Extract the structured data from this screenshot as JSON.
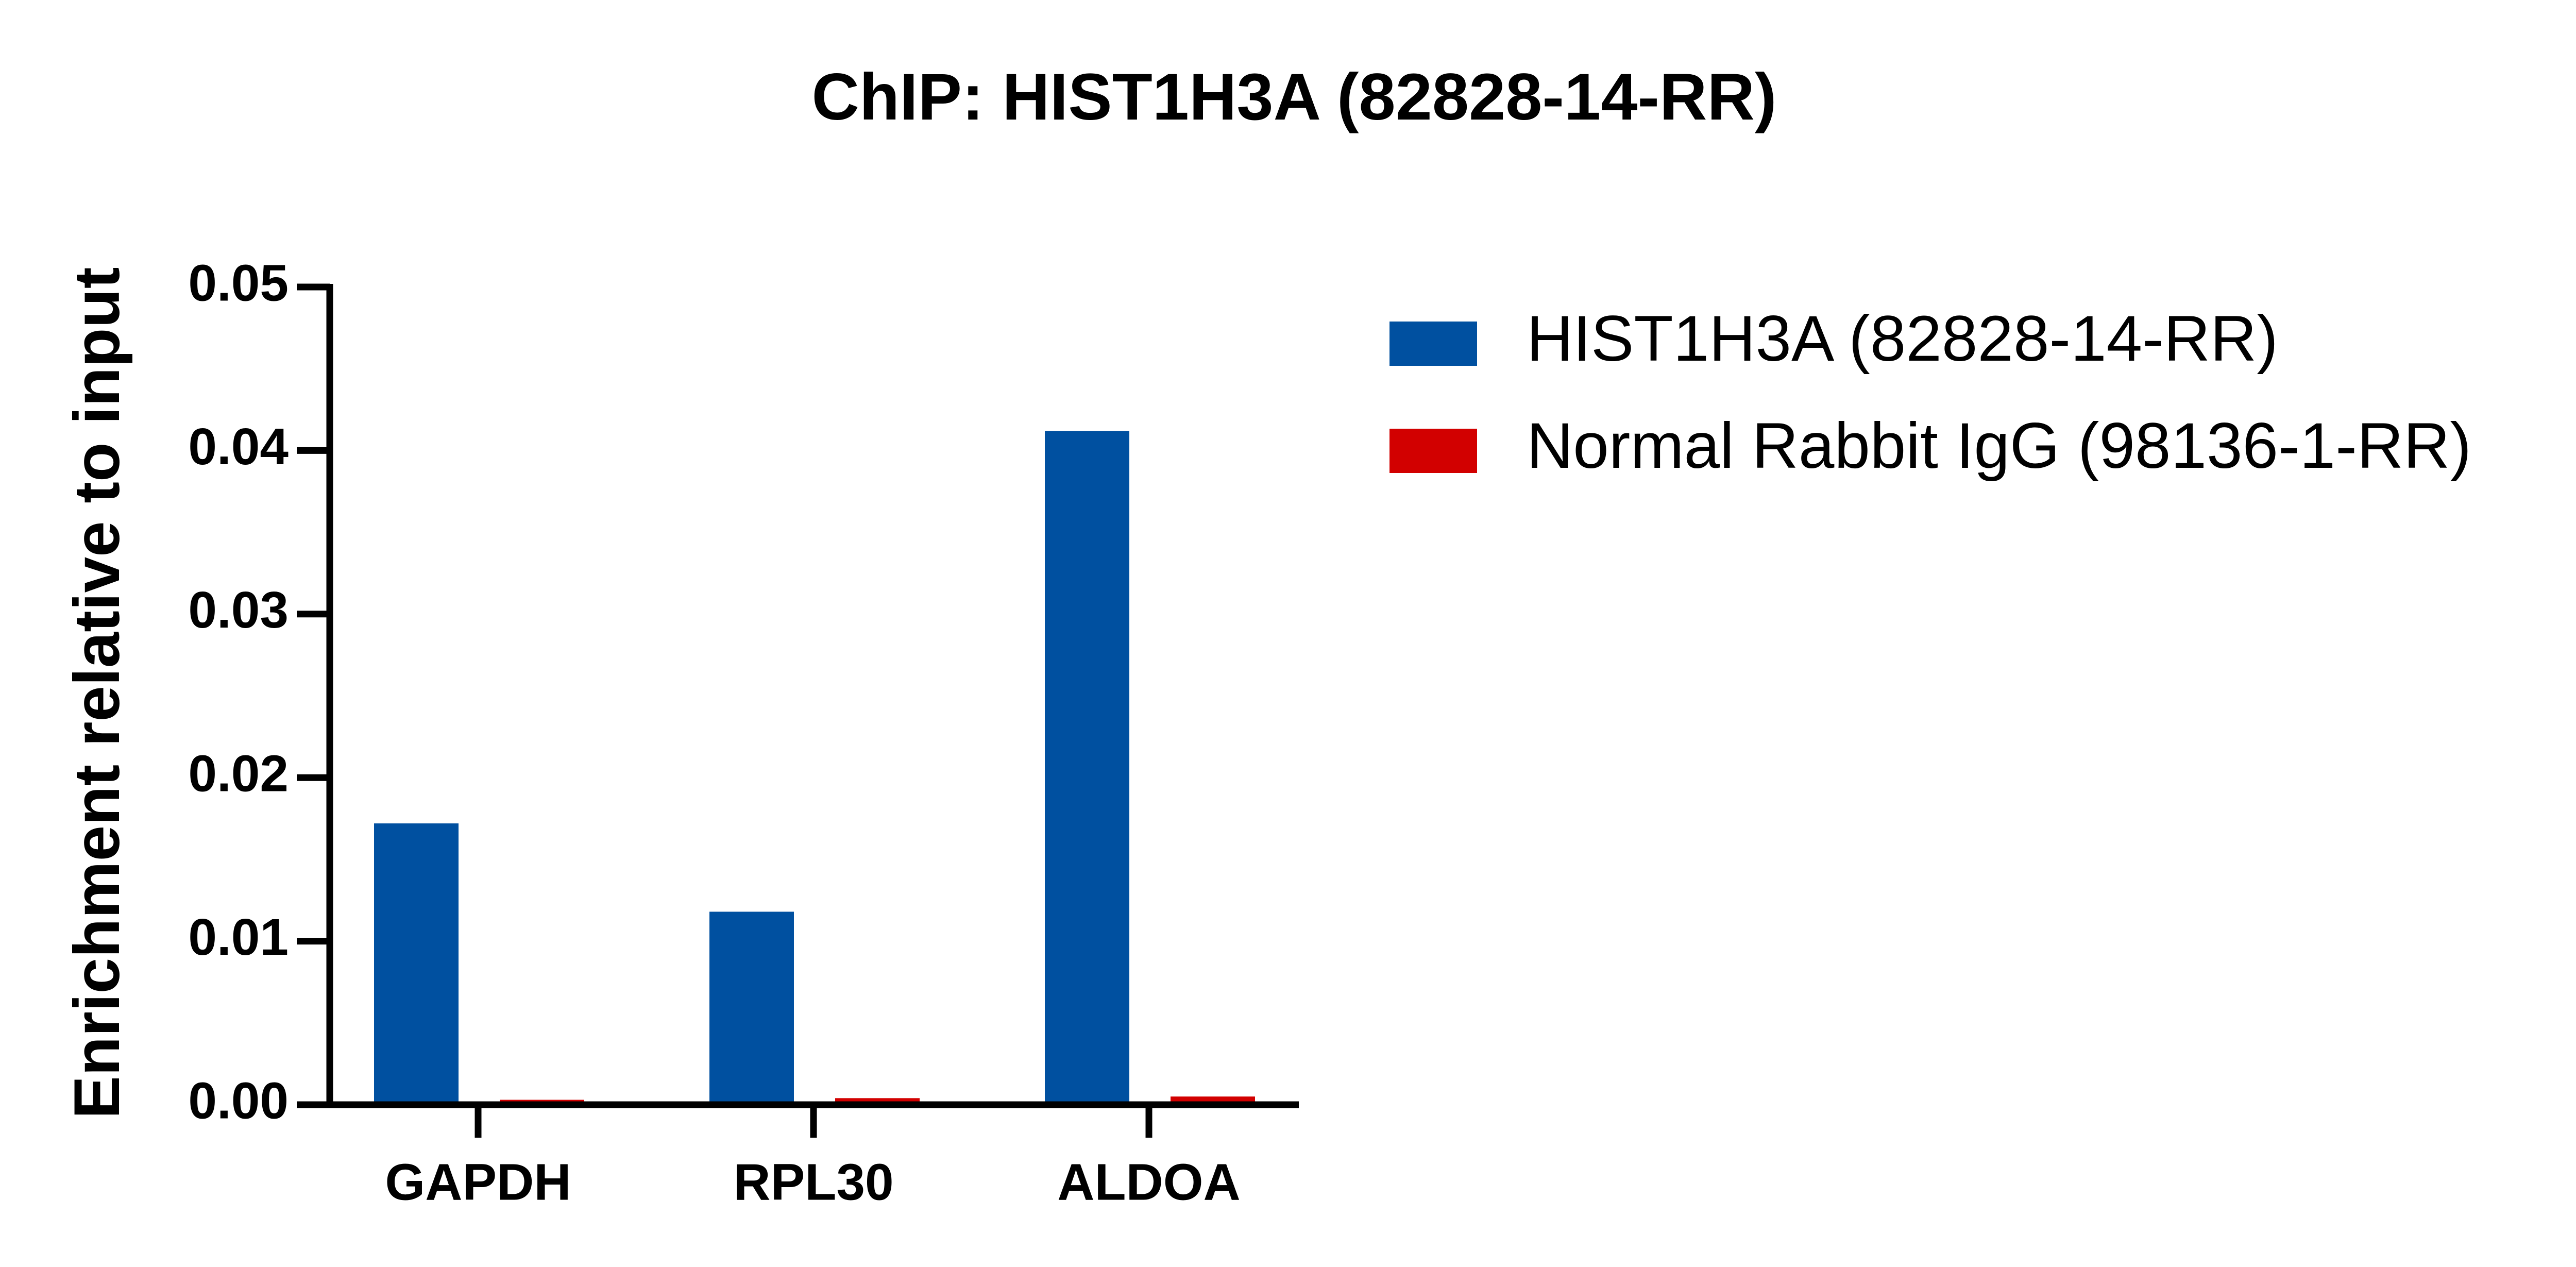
{
  "chart_data": {
    "type": "bar",
    "title": "ChIP: HIST1H3A (82828-14-RR)",
    "y_label": "Enrichment relative to input",
    "categories": [
      "GAPDH",
      "RPL30",
      "ALDOA"
    ],
    "series": [
      {
        "name": "HIST1H3A (82828-14-RR)",
        "color": "#0050a0",
        "values": [
          0.0172,
          0.0118,
          0.0412
        ]
      },
      {
        "name": "Normal Rabbit IgG (98136-1-RR)",
        "color": "#d20000",
        "values": [
          0.0003,
          0.0004,
          0.0005
        ]
      }
    ],
    "ylim": [
      0,
      0.05
    ],
    "yticks": [
      {
        "value": 0,
        "label": "0.00"
      },
      {
        "value": 0.01,
        "label": "0.01"
      },
      {
        "value": 0.02,
        "label": "0.02"
      },
      {
        "value": 0.03,
        "label": "0.03"
      },
      {
        "value": 0.04,
        "label": "0.04"
      },
      {
        "value": 0.05,
        "label": "0.05"
      }
    ],
    "legend": "top-right"
  }
}
